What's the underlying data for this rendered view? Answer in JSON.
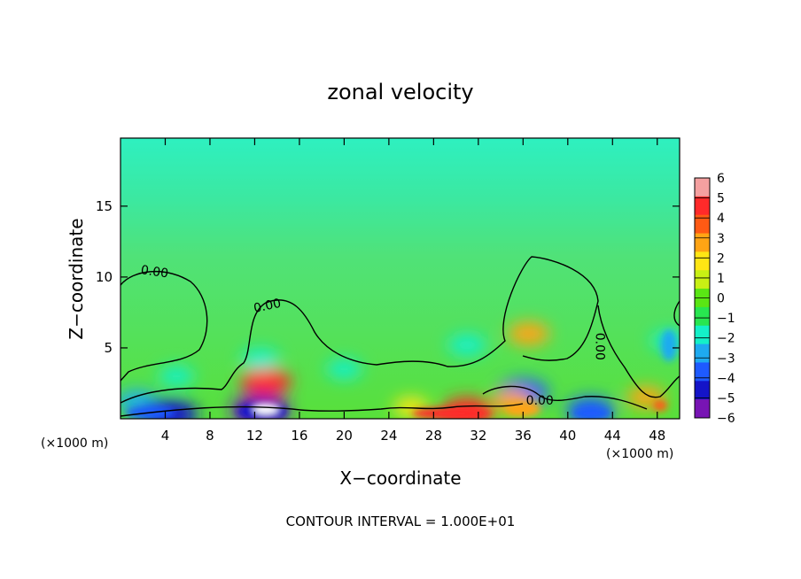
{
  "chart_data": {
    "type": "heatmap",
    "title": "zonal velocity",
    "xlabel": "X−coordinate",
    "ylabel": "Z−coordinate",
    "x_unit_left": "(×1000 m)",
    "x_unit_right": "(×1000 m)",
    "xlim": [
      0,
      50
    ],
    "ylim": [
      0,
      19.8
    ],
    "x_ticks": [
      4,
      8,
      12,
      16,
      20,
      24,
      28,
      32,
      36,
      40,
      44,
      48
    ],
    "y_ticks": [
      5,
      10,
      15
    ],
    "colorbar": {
      "levels": [
        6,
        5,
        4,
        3,
        2,
        1,
        0,
        -1,
        -2,
        -3,
        -4,
        -5,
        -6
      ],
      "labels": [
        "6",
        "5",
        "4",
        "3",
        "2",
        "1",
        "0",
        "−1",
        "−2",
        "−3",
        "−4",
        "−5",
        "−6"
      ],
      "colors": [
        "#f4a0a0",
        "#ff2a2a",
        "#ff5a14",
        "#ffa414",
        "#ffe614",
        "#c8f014",
        "#5ae614",
        "#28e650",
        "#14f0c8",
        "#1eaaf0",
        "#1e5aff",
        "#1414c8",
        "#7814b4"
      ]
    },
    "contours": [
      {
        "label": "0.00",
        "level": 0
      }
    ],
    "contour_labels": [
      {
        "text": "0.00",
        "x": 3.0,
        "y": 10.1,
        "angle": 8
      },
      {
        "text": "0.00",
        "x": 13.2,
        "y": 7.7,
        "angle": -12
      },
      {
        "text": "0.00",
        "x": 42.5,
        "y": 5.1,
        "angle": 90
      },
      {
        "text": "0.00",
        "x": 37.5,
        "y": 1.0,
        "angle": 0
      }
    ],
    "features": [
      {
        "x": 13,
        "y": 2.6,
        "value": 4.5
      },
      {
        "x": 12.5,
        "y": 4.2,
        "value": -2.5
      },
      {
        "x": 12.5,
        "y": 0.6,
        "value": -6
      },
      {
        "x": 36.5,
        "y": 6.0,
        "value": 3
      },
      {
        "x": 36,
        "y": 1.8,
        "value": -4.5
      },
      {
        "x": 31,
        "y": 5.2,
        "value": -2.5
      },
      {
        "x": 31,
        "y": 0.5,
        "value": 4.5
      },
      {
        "x": 35,
        "y": 1.2,
        "value": 3
      },
      {
        "x": 5,
        "y": 3.0,
        "value": -2
      },
      {
        "x": 1.5,
        "y": 1.2,
        "value": -3
      },
      {
        "x": 4.5,
        "y": 0.3,
        "value": -5
      },
      {
        "x": 20,
        "y": 3.5,
        "value": -2
      },
      {
        "x": 49,
        "y": 5.5,
        "value": -2
      },
      {
        "x": 47,
        "y": 1.5,
        "value": 2.5
      },
      {
        "x": 42,
        "y": 0.6,
        "value": -4
      },
      {
        "x": 26,
        "y": 0.8,
        "value": 2
      }
    ],
    "grid": false,
    "legend": "right"
  },
  "footer": {
    "contour_interval": "CONTOUR INTERVAL = 1.000E+01"
  }
}
